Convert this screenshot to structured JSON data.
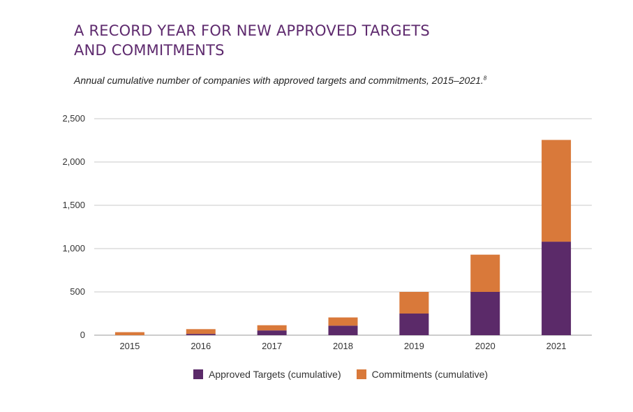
{
  "title_line1": "A RECORD YEAR FOR NEW APPROVED TARGETS",
  "title_line2": "AND COMMITMENTS",
  "subtitle": "Annual cumulative number of companies with approved targets and commitments, 2015–2021.",
  "subtitle_footnote": "8",
  "colors": {
    "approved": "#5b2a69",
    "commitments": "#d9793a",
    "grid": "#c8c8c8",
    "title": "#5e2a6e"
  },
  "chart_data": {
    "type": "bar",
    "stacked": true,
    "categories": [
      "2015",
      "2016",
      "2017",
      "2018",
      "2019",
      "2020",
      "2021"
    ],
    "series": [
      {
        "name": "Approved Targets (cumulative)",
        "values": [
          0,
          15,
          55,
          110,
          250,
          500,
          1080
        ]
      },
      {
        "name": "Commitments (cumulative)",
        "values": [
          35,
          55,
          60,
          95,
          250,
          430,
          1175
        ]
      }
    ],
    "ylim": [
      0,
      2500
    ],
    "yticks": [
      0,
      500,
      1000,
      1500,
      2000,
      2500
    ],
    "ytick_labels": [
      "0",
      "500",
      "1,000",
      "1,500",
      "2,000",
      "2,500"
    ],
    "grid": true,
    "legend_position": "bottom"
  }
}
